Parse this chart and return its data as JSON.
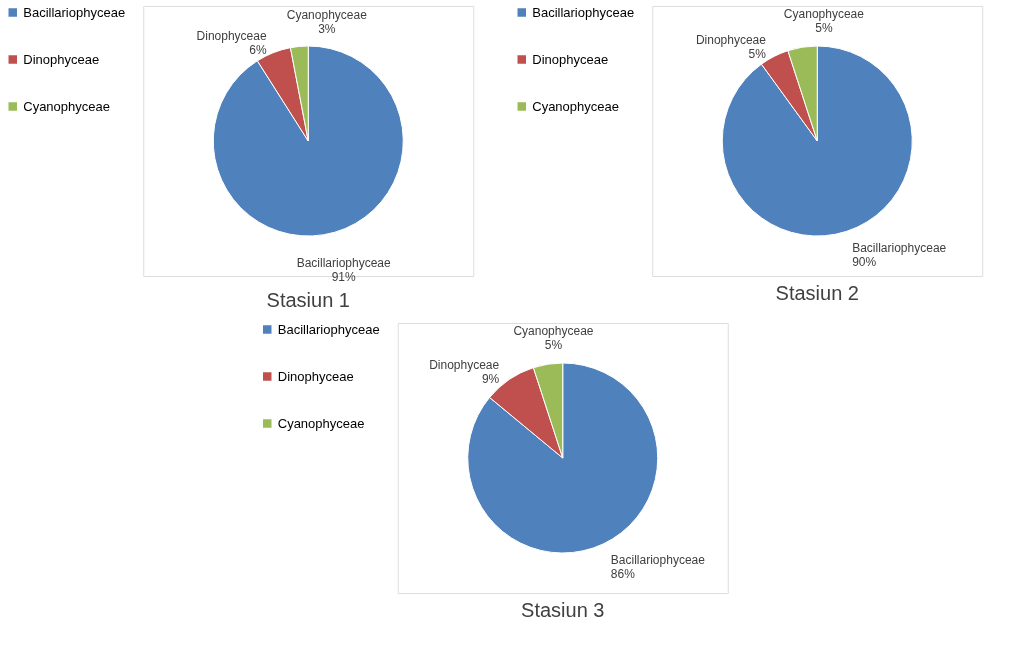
{
  "chart_data": [
    {
      "type": "pie",
      "title": "Stasiun 1",
      "categories": [
        "Bacillariophyceae",
        "Dinophyceae",
        "Cyanophyceae"
      ],
      "values": [
        91,
        6,
        3
      ],
      "colors": [
        "#4f81bd",
        "#c0504d",
        "#9bbb59"
      ],
      "value_labels": [
        "91%",
        "6%",
        "3%"
      ],
      "legend": "left"
    },
    {
      "type": "pie",
      "title": "Stasiun 2",
      "categories": [
        "Bacillariophyceae",
        "Dinophyceae",
        "Cyanophyceae"
      ],
      "values": [
        90,
        5,
        5
      ],
      "colors": [
        "#4f81bd",
        "#c0504d",
        "#9bbb59"
      ],
      "value_labels": [
        "90%",
        "5%",
        "5%"
      ],
      "legend": "left"
    },
    {
      "type": "pie",
      "title": "Stasiun 3",
      "categories": [
        "Bacillariophyceae",
        "Dinophyceae",
        "Cyanophyceae"
      ],
      "values": [
        86,
        9,
        5
      ],
      "colors": [
        "#4f81bd",
        "#c0504d",
        "#9bbb59"
      ],
      "value_labels": [
        "86%",
        "9%",
        "5%"
      ],
      "legend": "left"
    }
  ]
}
